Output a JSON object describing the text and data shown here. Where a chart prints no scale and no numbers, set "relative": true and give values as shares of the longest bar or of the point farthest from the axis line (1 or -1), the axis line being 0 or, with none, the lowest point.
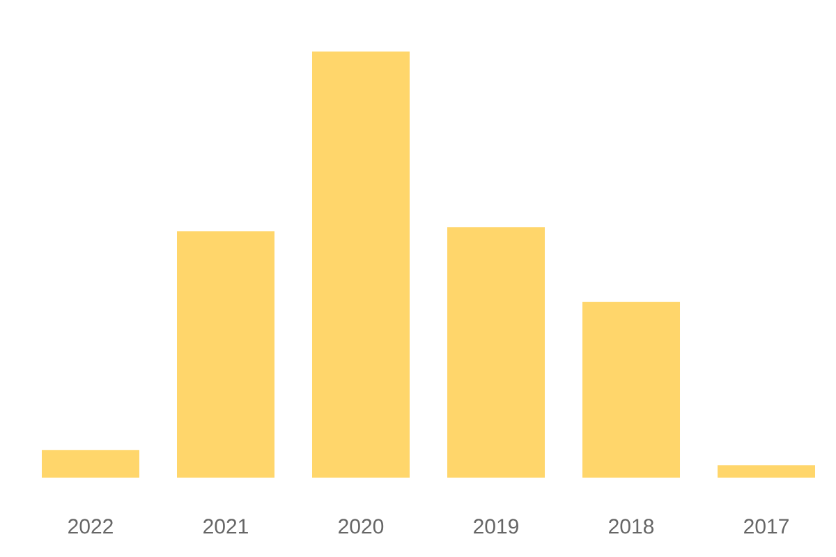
{
  "chart_data": {
    "type": "bar",
    "relative": true,
    "categories": [
      "2022",
      "2021",
      "2020",
      "2019",
      "2018",
      "2017"
    ],
    "values": [
      0.065,
      0.578,
      1,
      0.588,
      0.412,
      0.029
    ],
    "color": "#ffd66b"
  }
}
